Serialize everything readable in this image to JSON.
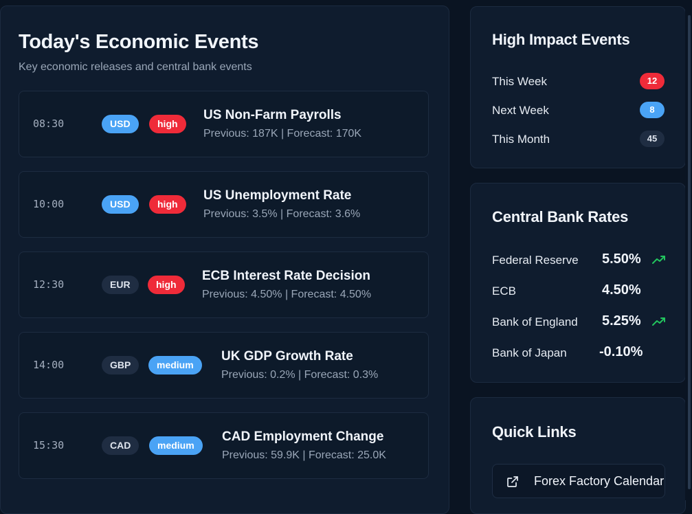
{
  "events_section": {
    "title": "Today's Economic Events",
    "subtitle": "Key economic releases and central bank events",
    "events": [
      {
        "time": "08:30",
        "currency": "USD",
        "impact": "high",
        "title": "US Non-Farm Payrolls",
        "details": "Previous: 187K | Forecast: 170K"
      },
      {
        "time": "10:00",
        "currency": "USD",
        "impact": "high",
        "title": "US Unemployment Rate",
        "details": "Previous: 3.5% | Forecast: 3.6%"
      },
      {
        "time": "12:30",
        "currency": "EUR",
        "impact": "high",
        "title": "ECB Interest Rate Decision",
        "details": "Previous: 4.50% | Forecast: 4.50%"
      },
      {
        "time": "14:00",
        "currency": "GBP",
        "impact": "medium",
        "title": "UK GDP Growth Rate",
        "details": "Previous: 0.2% | Forecast: 0.3%"
      },
      {
        "time": "15:30",
        "currency": "CAD",
        "impact": "medium",
        "title": "CAD Employment Change",
        "details": "Previous: 59.9K | Forecast: 25.0K"
      }
    ]
  },
  "high_impact": {
    "title": "High Impact Events",
    "items": [
      {
        "label": "This Week",
        "count": "12",
        "color": "#ef2b39"
      },
      {
        "label": "Next Week",
        "count": "8",
        "color": "#4aa3f5"
      },
      {
        "label": "This Month",
        "count": "45",
        "color": "#1f2d42"
      }
    ]
  },
  "central_bank_rates": {
    "title": "Central Bank Rates",
    "items": [
      {
        "bank": "Federal Reserve",
        "rate": "5.50%",
        "trend": "trending-up-icon"
      },
      {
        "bank": "ECB",
        "rate": "4.50%",
        "trend": ""
      },
      {
        "bank": "Bank of England",
        "rate": "5.25%",
        "trend": "trending-up-icon"
      },
      {
        "bank": "Bank of Japan",
        "rate": "-0.10%",
        "trend": ""
      }
    ]
  },
  "quick_links": {
    "title": "Quick Links",
    "links": [
      {
        "label": "Forex Factory Calendar",
        "icon": "external-link-icon"
      }
    ]
  },
  "colors": {
    "background": "#0a1422",
    "panel": "#0f1c2e",
    "accent_blue": "#4aa3f5",
    "accent_red": "#ef2b39",
    "trend_green": "#22c55e"
  }
}
